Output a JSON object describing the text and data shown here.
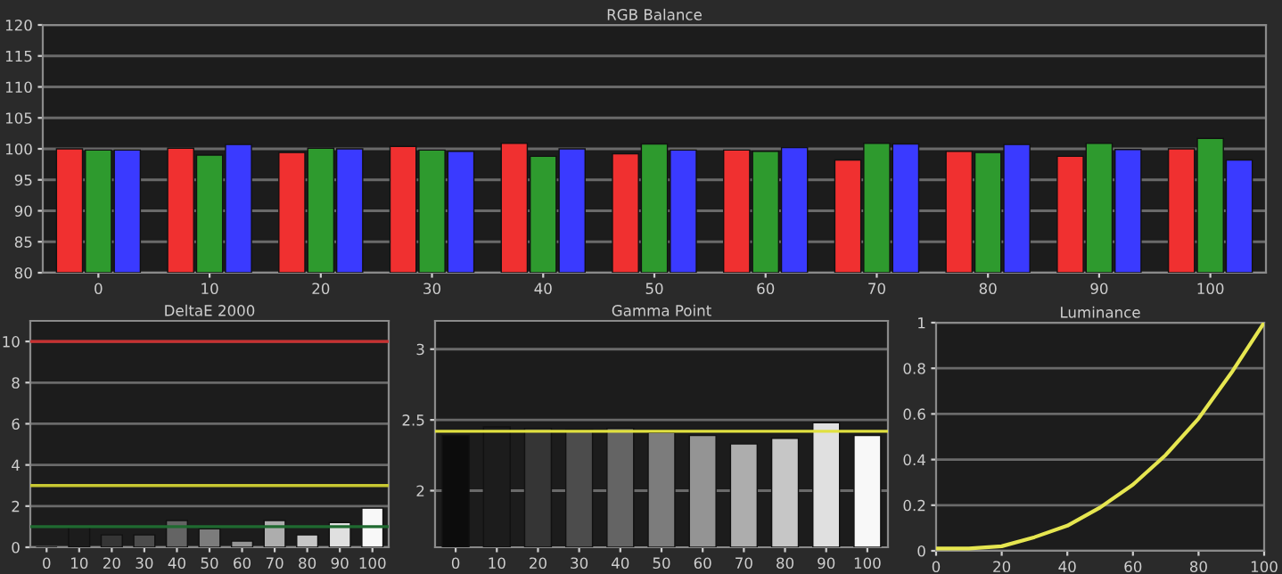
{
  "chart_data": [
    {
      "type": "bar",
      "title": "RGB Balance",
      "categories": [
        "0",
        "10",
        "20",
        "30",
        "40",
        "50",
        "60",
        "70",
        "80",
        "90",
        "100"
      ],
      "series": [
        {
          "color": "#f03030",
          "values": [
            100,
            100.1,
            99.4,
            100.4,
            100.9,
            99.2,
            99.8,
            98.2,
            99.6,
            98.8,
            100
          ]
        },
        {
          "color": "#2e9a2e",
          "values": [
            99.8,
            99.0,
            100.1,
            99.8,
            98.8,
            100.8,
            99.6,
            100.9,
            99.4,
            100.9,
            101.7
          ]
        },
        {
          "color": "#3a3aff",
          "values": [
            99.8,
            100.7,
            100,
            99.6,
            100,
            99.8,
            100.2,
            100.8,
            100.7,
            99.9,
            98.2
          ]
        }
      ],
      "ylim": [
        80,
        120
      ],
      "yticks": [
        80,
        85,
        90,
        95,
        100,
        105,
        110,
        115,
        120
      ],
      "grid": "y"
    },
    {
      "type": "bar",
      "title": "DeltaE 2000",
      "categories": [
        "0",
        "10",
        "20",
        "30",
        "40",
        "50",
        "60",
        "70",
        "80",
        "90",
        "100"
      ],
      "values": [
        0,
        1.0,
        0.6,
        0.6,
        1.3,
        0.9,
        0.3,
        1.3,
        0.6,
        1.2,
        1.9
      ],
      "colors": [
        "#0c0c0c",
        "#1c1c1c",
        "#353535",
        "#4c4c4c",
        "#646464",
        "#7c7c7c",
        "#949494",
        "#adadad",
        "#c6c6c6",
        "#e0e0e0",
        "#f8f8f8"
      ],
      "ylim": [
        0,
        11
      ],
      "yticks": [
        0,
        2,
        4,
        6,
        8,
        10
      ],
      "grid": "y",
      "ref_lines": [
        {
          "axis": "y",
          "value": 10,
          "color": "#c83030"
        },
        {
          "axis": "y",
          "value": 3,
          "color": "#c8c832"
        },
        {
          "axis": "y",
          "value": 1,
          "color": "#1f6a30"
        }
      ]
    },
    {
      "type": "bar",
      "title": "Gamma Point",
      "categories": [
        "0",
        "10",
        "20",
        "30",
        "40",
        "50",
        "60",
        "70",
        "80",
        "90",
        "100"
      ],
      "values": [
        2.39,
        2.45,
        2.44,
        2.43,
        2.44,
        2.41,
        2.39,
        2.33,
        2.37,
        2.48,
        2.39
      ],
      "colors": [
        "#0c0c0c",
        "#1c1c1c",
        "#353535",
        "#4c4c4c",
        "#646464",
        "#7c7c7c",
        "#949494",
        "#adadad",
        "#c6c6c6",
        "#e0e0e0",
        "#f8f8f8"
      ],
      "ylim": [
        1.6,
        3.2
      ],
      "yticks": [
        2,
        2.5,
        3
      ],
      "grid": "y",
      "ref_lines": [
        {
          "axis": "y",
          "value": 2.42,
          "color": "#e0e040"
        }
      ]
    },
    {
      "type": "line",
      "title": "Luminance",
      "x": [
        0,
        10,
        20,
        30,
        40,
        50,
        60,
        70,
        80,
        90,
        100
      ],
      "series": [
        {
          "color": "#e6e650",
          "values": [
            0.01,
            0.01,
            0.02,
            0.06,
            0.11,
            0.19,
            0.29,
            0.42,
            0.58,
            0.78,
            1
          ]
        }
      ],
      "xlim": [
        0,
        100
      ],
      "xticks": [
        0,
        20,
        40,
        60,
        80,
        100
      ],
      "ylim": [
        0,
        1
      ],
      "yticks": [
        0,
        0.2,
        0.4,
        0.6,
        0.8,
        1
      ],
      "grid": "y"
    }
  ]
}
